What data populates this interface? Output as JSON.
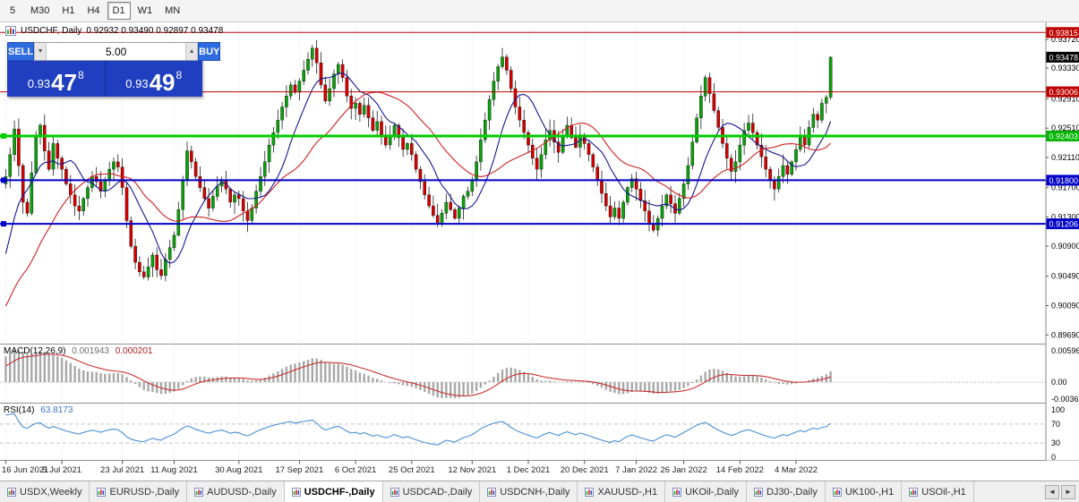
{
  "toolbar": {
    "timeframes": [
      {
        "label": "5",
        "active": false
      },
      {
        "label": "M30",
        "active": false
      },
      {
        "label": "H1",
        "active": false
      },
      {
        "label": "H4",
        "active": false
      },
      {
        "label": "D1",
        "active": true
      },
      {
        "label": "W1",
        "active": false
      },
      {
        "label": "MN",
        "active": false
      }
    ]
  },
  "chart_header": {
    "symbol_period": "USDCHF, Daily",
    "ohlc": "0.92932 0.93490 0.92897 0.93478"
  },
  "trade_panel": {
    "sell_label": "SELL",
    "buy_label": "BUY",
    "volume": "5.00",
    "spinner_down": "▼",
    "spinner_up": "▲",
    "sell_price_main": "0.93",
    "sell_price_big": "47",
    "sell_price_sup": "8",
    "buy_price_main": "0.93",
    "buy_price_big": "49",
    "buy_price_sup": "8"
  },
  "levels": [
    {
      "value": 0.93815,
      "color": "#C00000",
      "width": 1,
      "handle": false
    },
    {
      "value": 0.93006,
      "color": "#C00000",
      "width": 1,
      "handle": false
    },
    {
      "value": 0.92403,
      "color": "#00CC00",
      "width": 3,
      "handle": true
    },
    {
      "value": 0.918,
      "color": "#0000C8",
      "width": 2,
      "handle": true
    },
    {
      "value": 0.91206,
      "color": "#0000C8",
      "width": 2,
      "handle": true
    }
  ],
  "price_axis": {
    "plain": [
      {
        "label": "0.93720",
        "value": 0.9372
      },
      {
        "label": "0.93330",
        "value": 0.9333
      },
      {
        "label": "0.92910",
        "value": 0.9291
      },
      {
        "label": "0.92510",
        "value": 0.9251
      },
      {
        "label": "0.92110",
        "value": 0.9211
      },
      {
        "label": "0.91700",
        "value": 0.917
      },
      {
        "label": "0.91300",
        "value": 0.913
      },
      {
        "label": "0.90900",
        "value": 0.909
      },
      {
        "label": "0.90490",
        "value": 0.9049
      },
      {
        "label": "0.90090",
        "value": 0.9009
      },
      {
        "label": "0.89690",
        "value": 0.8969
      }
    ],
    "badges": [
      {
        "label": "0.93815",
        "value": 0.93815,
        "bg": "#C00000"
      },
      {
        "label": "0.93478",
        "value": 0.93478,
        "bg": "#000000"
      },
      {
        "label": "0.93006",
        "value": 0.93006,
        "bg": "#C00000"
      },
      {
        "label": "0.92403",
        "value": 0.92403,
        "bg": "#00B400"
      },
      {
        "label": "0.91800",
        "value": 0.918,
        "bg": "#0000C8"
      },
      {
        "label": "0.91206",
        "value": 0.91206,
        "bg": "#0000C8"
      }
    ]
  },
  "macd_panel": {
    "label": "MACD(12,26,9)",
    "value_main": "0.001943",
    "value_signal": "0.000201",
    "axis_labels": [
      "0.00596",
      "0.00",
      "-0.00366"
    ]
  },
  "rsi_panel": {
    "label": "RSI(14)",
    "value": "63.8173",
    "axis_labels": [
      {
        "label": "100",
        "value": 100
      },
      {
        "label": "70",
        "value": 70
      },
      {
        "label": "30",
        "value": 30
      },
      {
        "label": "0",
        "value": 0
      }
    ],
    "level_lines": [
      70,
      30
    ]
  },
  "tabs": [
    {
      "label": "USDX,Weekly",
      "active": false
    },
    {
      "label": "EURUSD-,Daily",
      "active": false
    },
    {
      "label": "AUDUSD-,Daily",
      "active": false
    },
    {
      "label": "USDCHF-,Daily",
      "active": true
    },
    {
      "label": "USDCAD-,Daily",
      "active": false
    },
    {
      "label": "USDCNH-,Daily",
      "active": false
    },
    {
      "label": "XAUUSD-,H1",
      "active": false
    },
    {
      "label": "UKOil-,Daily",
      "active": false
    },
    {
      "label": "DJ30-,Daily",
      "active": false
    },
    {
      "label": "UK100-,H1",
      "active": false
    },
    {
      "label": "USOil-,H1",
      "active": false
    }
  ],
  "tab_scroll": {
    "left": "◄",
    "right": "►"
  },
  "chart_data": {
    "type": "candlestick",
    "symbol": "USDCHF",
    "timeframe": "Daily",
    "title": "USDCHF, Daily",
    "current_bar": {
      "open": 0.92932,
      "high": 0.9349,
      "low": 0.92897,
      "close": 0.93478
    },
    "price_range": {
      "min": 0.8962,
      "max": 0.9388
    },
    "colors": {
      "up": "#0AA00A",
      "down": "#D40000",
      "wick": "#000000"
    },
    "moving_averages": [
      {
        "period": 10,
        "color": "#16168F"
      },
      {
        "period": 24,
        "color": "#CE2020"
      }
    ],
    "x_ticks": [
      {
        "index": 0,
        "label": "16 Jun 2021"
      },
      {
        "index": 13,
        "label": "5 Jul 2021"
      },
      {
        "index": 27,
        "label": "23 Jul 2021"
      },
      {
        "index": 39,
        "label": "11 Aug 2021"
      },
      {
        "index": 54,
        "label": "30 Aug 2021"
      },
      {
        "index": 68,
        "label": "17 Sep 2021"
      },
      {
        "index": 81,
        "label": "6 Oct 2021"
      },
      {
        "index": 94,
        "label": "25 Oct 2021"
      },
      {
        "index": 108,
        "label": "12 Nov 2021"
      },
      {
        "index": 121,
        "label": "1 Dec 2021"
      },
      {
        "index": 134,
        "label": "20 Dec 2021"
      },
      {
        "index": 146,
        "label": "7 Jan 2022"
      },
      {
        "index": 157,
        "label": "26 Jan 2022"
      },
      {
        "index": 170,
        "label": "14 Feb 2022"
      },
      {
        "index": 183,
        "label": "4 Mar 2022"
      }
    ],
    "history_closes": [
      0.8935,
      0.894,
      0.8932,
      0.8945,
      0.895,
      0.8942,
      0.8955,
      0.8948,
      0.896,
      0.8952,
      0.8965,
      0.8958,
      0.897,
      0.8962,
      0.8975,
      0.8985,
      0.8978,
      0.8995,
      0.901,
      0.9035,
      0.906,
      0.909,
      0.912,
      0.915,
      0.9175
    ],
    "closes": [
      0.9185,
      0.9215,
      0.925,
      0.92,
      0.915,
      0.9135,
      0.919,
      0.924,
      0.9255,
      0.922,
      0.9195,
      0.923,
      0.921,
      0.9195,
      0.9175,
      0.916,
      0.9145,
      0.9138,
      0.9155,
      0.917,
      0.9185,
      0.9178,
      0.9165,
      0.918,
      0.9195,
      0.9205,
      0.9198,
      0.917,
      0.9125,
      0.909,
      0.9068,
      0.9055,
      0.9048,
      0.9062,
      0.9078,
      0.9058,
      0.905,
      0.9072,
      0.9088,
      0.9105,
      0.914,
      0.918,
      0.922,
      0.9205,
      0.9185,
      0.917,
      0.9155,
      0.9142,
      0.9158,
      0.9172,
      0.918,
      0.9168,
      0.915,
      0.916,
      0.9155,
      0.9138,
      0.9125,
      0.9142,
      0.9165,
      0.9185,
      0.9205,
      0.9228,
      0.9245,
      0.9262,
      0.928,
      0.9295,
      0.931,
      0.93,
      0.9315,
      0.933,
      0.9345,
      0.936,
      0.934,
      0.931,
      0.9288,
      0.9305,
      0.9325,
      0.9338,
      0.932,
      0.9295,
      0.9278,
      0.9285,
      0.927,
      0.9282,
      0.9265,
      0.9248,
      0.926,
      0.9242,
      0.9228,
      0.924,
      0.9255,
      0.9238,
      0.9222,
      0.923,
      0.9215,
      0.9195,
      0.9178,
      0.916,
      0.9145,
      0.9132,
      0.912,
      0.9135,
      0.915,
      0.914,
      0.9128,
      0.9142,
      0.9158,
      0.9165,
      0.918,
      0.9205,
      0.9235,
      0.9262,
      0.929,
      0.9315,
      0.9335,
      0.9348,
      0.933,
      0.9305,
      0.928,
      0.9262,
      0.9245,
      0.9228,
      0.921,
      0.9195,
      0.9215,
      0.9235,
      0.9248,
      0.9232,
      0.9218,
      0.924,
      0.9255,
      0.9238,
      0.9225,
      0.9242,
      0.923,
      0.9215,
      0.9198,
      0.918,
      0.9162,
      0.9145,
      0.913,
      0.9142,
      0.9128,
      0.915,
      0.917,
      0.9182,
      0.9168,
      0.9152,
      0.9138,
      0.912,
      0.9112,
      0.9128,
      0.9145,
      0.916,
      0.9148,
      0.9135,
      0.9155,
      0.9175,
      0.92,
      0.9232,
      0.9265,
      0.9295,
      0.932,
      0.9298,
      0.9275,
      0.9252,
      0.923,
      0.921,
      0.9192,
      0.9205,
      0.9228,
      0.9248,
      0.9258,
      0.9245,
      0.9228,
      0.9212,
      0.9195,
      0.918,
      0.9168,
      0.9185,
      0.92,
      0.9188,
      0.9205,
      0.9222,
      0.924,
      0.9228,
      0.9252,
      0.927,
      0.9262,
      0.9285,
      0.92932,
      0.93478
    ]
  }
}
